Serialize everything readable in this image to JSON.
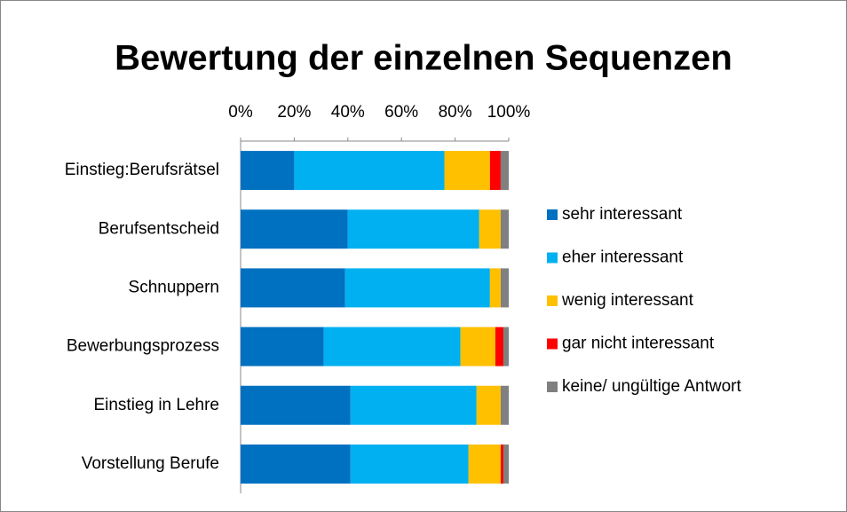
{
  "chart_data": {
    "type": "stacked-barh",
    "title": "Bewertung der einzelnen Sequenzen",
    "categories": [
      "Einstieg:Berufsrätsel",
      "Berufsentscheid",
      "Schnuppern",
      "Bewerbungsprozess",
      "Einstieg in Lehre",
      "Vorstellung Berufe"
    ],
    "series": [
      {
        "name": "sehr interessant",
        "color": "#0070c0",
        "values": [
          20,
          40,
          39,
          31,
          41,
          41
        ]
      },
      {
        "name": "eher interessant",
        "color": "#00b0f0",
        "values": [
          56,
          49,
          54,
          51,
          47,
          44
        ]
      },
      {
        "name": "wenig interessant",
        "color": "#ffc000",
        "values": [
          17,
          8,
          4,
          13,
          9,
          12
        ]
      },
      {
        "name": "gar nicht interessant",
        "color": "#ff0000",
        "values": [
          4,
          0,
          0,
          3,
          0,
          1
        ]
      },
      {
        "name": "keine/ ungültige Antwort",
        "color": "#808080",
        "values": [
          3,
          3,
          3,
          2,
          3,
          2
        ]
      }
    ],
    "xlim": [
      0,
      100
    ],
    "xticks": [
      {
        "value": 0,
        "label": "0%"
      },
      {
        "value": 20,
        "label": "20%"
      },
      {
        "value": 40,
        "label": "40%"
      },
      {
        "value": 60,
        "label": "60%"
      },
      {
        "value": 80,
        "label": "80%"
      },
      {
        "value": 100,
        "label": "100%"
      }
    ],
    "legend": "right"
  }
}
